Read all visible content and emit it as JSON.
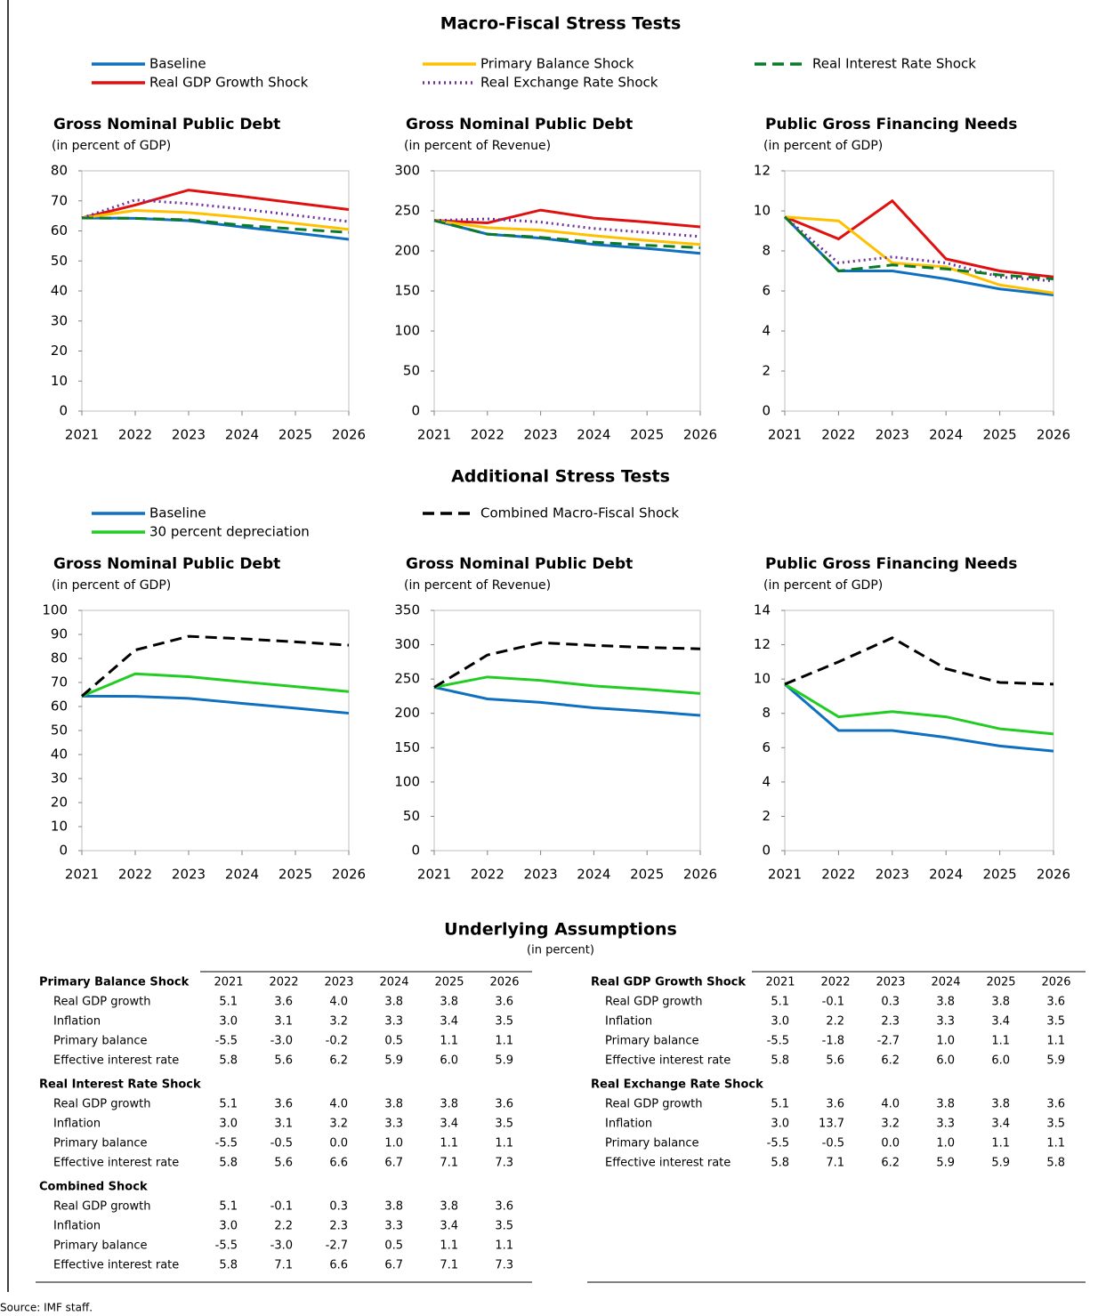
{
  "section_titles": [
    "Macro-Fiscal Stress Tests",
    "Additional Stress Tests"
  ],
  "chart_data": [
    {
      "type": "line",
      "title": "Gross Nominal Public Debt",
      "subtitle": "(in percent of GDP)",
      "categories": [
        "2021",
        "2022",
        "2023",
        "2024",
        "2025",
        "2026"
      ],
      "series": [
        {
          "name": "Baseline",
          "color": "#1070c0",
          "style": "solid",
          "values": [
            64.3,
            64.2,
            63.4,
            61.3,
            59.3,
            57.2
          ]
        },
        {
          "name": "Real GDP Growth Shock",
          "color": "#e01010",
          "style": "solid",
          "values": [
            64.3,
            68.6,
            73.6,
            71.5,
            69.3,
            67.1
          ]
        },
        {
          "name": "Primary Balance Shock",
          "color": "#ffc000",
          "style": "solid",
          "values": [
            64.3,
            66.8,
            66.1,
            64.5,
            62.5,
            60.5
          ]
        },
        {
          "name": "Real Exchange Rate Shock",
          "color": "#7030a0",
          "style": "dotted",
          "values": [
            64.3,
            70.3,
            69.1,
            67.3,
            65.2,
            63.1
          ]
        },
        {
          "name": "Real Interest Rate Shock",
          "color": "#0a7a2a",
          "style": "dashed",
          "values": [
            64.3,
            64.2,
            63.7,
            61.9,
            60.6,
            59.5
          ]
        }
      ],
      "ylim": [
        0,
        80
      ],
      "yticks": [
        0,
        10,
        20,
        30,
        40,
        50,
        60,
        70,
        80
      ]
    },
    {
      "type": "line",
      "title": "Gross Nominal Public Debt",
      "subtitle": "(in percent of Revenue)",
      "categories": [
        "2021",
        "2022",
        "2023",
        "2024",
        "2025",
        "2026"
      ],
      "series": [
        {
          "name": "Baseline",
          "color": "#1070c0",
          "style": "solid",
          "values": [
            238,
            221,
            216,
            208,
            203,
            197
          ]
        },
        {
          "name": "Real GDP Growth Shock",
          "color": "#e01010",
          "style": "solid",
          "values": [
            238,
            235,
            251,
            241,
            236,
            230
          ]
        },
        {
          "name": "Primary Balance Shock",
          "color": "#ffc000",
          "style": "solid",
          "values": [
            238,
            229,
            226,
            219,
            213,
            208
          ]
        },
        {
          "name": "Real Exchange Rate Shock",
          "color": "#7030a0",
          "style": "dotted",
          "values": [
            238,
            240,
            236,
            228,
            223,
            218
          ]
        },
        {
          "name": "Real Interest Rate Shock",
          "color": "#0a7a2a",
          "style": "dashed",
          "values": [
            238,
            221,
            217,
            211,
            207,
            204
          ]
        }
      ],
      "ylim": [
        0,
        300
      ],
      "yticks": [
        0,
        50,
        100,
        150,
        200,
        250,
        300
      ]
    },
    {
      "type": "line",
      "title": "Public Gross Financing Needs",
      "subtitle": "(in percent of GDP)",
      "categories": [
        "2021",
        "2022",
        "2023",
        "2024",
        "2025",
        "2026"
      ],
      "series": [
        {
          "name": "Baseline",
          "color": "#1070c0",
          "style": "solid",
          "values": [
            9.7,
            7.0,
            7.0,
            6.6,
            6.1,
            5.8
          ]
        },
        {
          "name": "Real GDP Growth Shock",
          "color": "#e01010",
          "style": "solid",
          "values": [
            9.7,
            8.6,
            10.5,
            7.6,
            7.0,
            6.7
          ]
        },
        {
          "name": "Primary Balance Shock",
          "color": "#ffc000",
          "style": "solid",
          "values": [
            9.7,
            9.5,
            7.4,
            7.2,
            6.3,
            5.9
          ]
        },
        {
          "name": "Real Exchange Rate Shock",
          "color": "#7030a0",
          "style": "dotted",
          "values": [
            9.7,
            7.4,
            7.7,
            7.4,
            6.7,
            6.5
          ]
        },
        {
          "name": "Real Interest Rate Shock",
          "color": "#0a7a2a",
          "style": "dashed",
          "values": [
            9.7,
            7.0,
            7.3,
            7.1,
            6.8,
            6.6
          ]
        }
      ],
      "ylim": [
        0,
        12
      ],
      "yticks": [
        0,
        2,
        4,
        6,
        8,
        10,
        12
      ]
    },
    {
      "type": "line",
      "title": "Gross Nominal Public Debt",
      "subtitle": "(in percent of GDP)",
      "categories": [
        "2021",
        "2022",
        "2023",
        "2024",
        "2025",
        "2026"
      ],
      "series": [
        {
          "name": "Baseline",
          "color": "#1070c0",
          "style": "solid",
          "values": [
            64.3,
            64.2,
            63.4,
            61.3,
            59.3,
            57.2
          ]
        },
        {
          "name": "30 percent depreciation",
          "color": "#22cc22",
          "style": "solid",
          "values": [
            64.3,
            73.6,
            72.4,
            70.3,
            68.3,
            66.2
          ]
        },
        {
          "name": "Combined Macro-Fiscal Shock",
          "color": "#000000",
          "style": "dashed",
          "values": [
            64.3,
            83.5,
            89.2,
            88.2,
            86.9,
            85.5
          ]
        }
      ],
      "ylim": [
        0,
        100
      ],
      "yticks": [
        0,
        10,
        20,
        30,
        40,
        50,
        60,
        70,
        80,
        90,
        100
      ]
    },
    {
      "type": "line",
      "title": "Gross Nominal Public Debt",
      "subtitle": "(in percent of Revenue)",
      "categories": [
        "2021",
        "2022",
        "2023",
        "2024",
        "2025",
        "2026"
      ],
      "series": [
        {
          "name": "Baseline",
          "color": "#1070c0",
          "style": "solid",
          "values": [
            238,
            221,
            216,
            208,
            203,
            197
          ]
        },
        {
          "name": "30 percent depreciation",
          "color": "#22cc22",
          "style": "solid",
          "values": [
            238,
            253,
            248,
            240,
            235,
            229
          ]
        },
        {
          "name": "Combined Macro-Fiscal Shock",
          "color": "#000000",
          "style": "dashed",
          "values": [
            238,
            285,
            303,
            299,
            296,
            294
          ]
        }
      ],
      "ylim": [
        0,
        350
      ],
      "yticks": [
        0,
        50,
        100,
        150,
        200,
        250,
        300,
        350
      ]
    },
    {
      "type": "line",
      "title": "Public Gross Financing Needs",
      "subtitle": "(in percent of GDP)",
      "categories": [
        "2021",
        "2022",
        "2023",
        "2024",
        "2025",
        "2026"
      ],
      "series": [
        {
          "name": "Baseline",
          "color": "#1070c0",
          "style": "solid",
          "values": [
            9.7,
            7.0,
            7.0,
            6.6,
            6.1,
            5.8
          ]
        },
        {
          "name": "30 percent depreciation",
          "color": "#22cc22",
          "style": "solid",
          "values": [
            9.7,
            7.8,
            8.1,
            7.8,
            7.1,
            6.8
          ]
        },
        {
          "name": "Combined Macro-Fiscal Shock",
          "color": "#000000",
          "style": "dashed",
          "values": [
            9.7,
            11.0,
            12.4,
            10.6,
            9.8,
            9.7
          ]
        }
      ],
      "ylim": [
        0,
        14
      ],
      "yticks": [
        0,
        2,
        4,
        6,
        8,
        10,
        12,
        14
      ]
    }
  ],
  "assumptions": {
    "title": "Underlying Assumptions",
    "subtitle": "(in percent)",
    "columns": [
      {
        "years": [
          "2021",
          "2022",
          "2023",
          "2024",
          "2025",
          "2026"
        ],
        "tables": [
          {
            "name": "Primary Balance Shock",
            "rows": [
              {
                "label": "Real GDP growth",
                "values": [
                  "5.1",
                  "3.6",
                  "4.0",
                  "3.8",
                  "3.8",
                  "3.6"
                ]
              },
              {
                "label": "Inflation",
                "values": [
                  "3.0",
                  "3.1",
                  "3.2",
                  "3.3",
                  "3.4",
                  "3.5"
                ]
              },
              {
                "label": "Primary balance",
                "values": [
                  "-5.5",
                  "-3.0",
                  "-0.2",
                  "0.5",
                  "1.1",
                  "1.1"
                ]
              },
              {
                "label": "Effective interest rate",
                "values": [
                  "5.8",
                  "5.6",
                  "6.2",
                  "5.9",
                  "6.0",
                  "5.9"
                ]
              }
            ]
          },
          {
            "name": "Real Interest Rate Shock",
            "rows": [
              {
                "label": "Real GDP growth",
                "values": [
                  "5.1",
                  "3.6",
                  "4.0",
                  "3.8",
                  "3.8",
                  "3.6"
                ]
              },
              {
                "label": "Inflation",
                "values": [
                  "3.0",
                  "3.1",
                  "3.2",
                  "3.3",
                  "3.4",
                  "3.5"
                ]
              },
              {
                "label": "Primary balance",
                "values": [
                  "-5.5",
                  "-0.5",
                  "0.0",
                  "1.0",
                  "1.1",
                  "1.1"
                ]
              },
              {
                "label": "Effective interest rate",
                "values": [
                  "5.8",
                  "5.6",
                  "6.6",
                  "6.7",
                  "7.1",
                  "7.3"
                ]
              }
            ]
          },
          {
            "name": "Combined Shock",
            "rows": [
              {
                "label": "Real GDP growth",
                "values": [
                  "5.1",
                  "-0.1",
                  "0.3",
                  "3.8",
                  "3.8",
                  "3.6"
                ]
              },
              {
                "label": "Inflation",
                "values": [
                  "3.0",
                  "2.2",
                  "2.3",
                  "3.3",
                  "3.4",
                  "3.5"
                ]
              },
              {
                "label": "Primary balance",
                "values": [
                  "-5.5",
                  "-3.0",
                  "-2.7",
                  "0.5",
                  "1.1",
                  "1.1"
                ]
              },
              {
                "label": "Effective interest rate",
                "values": [
                  "5.8",
                  "7.1",
                  "6.6",
                  "6.7",
                  "7.1",
                  "7.3"
                ]
              }
            ]
          }
        ]
      },
      {
        "years": [
          "2021",
          "2022",
          "2023",
          "2024",
          "2025",
          "2026"
        ],
        "tables": [
          {
            "name": "Real GDP Growth Shock",
            "rows": [
              {
                "label": "Real GDP growth",
                "values": [
                  "5.1",
                  "-0.1",
                  "0.3",
                  "3.8",
                  "3.8",
                  "3.6"
                ]
              },
              {
                "label": "Inflation",
                "values": [
                  "3.0",
                  "2.2",
                  "2.3",
                  "3.3",
                  "3.4",
                  "3.5"
                ]
              },
              {
                "label": "Primary balance",
                "values": [
                  "-5.5",
                  "-1.8",
                  "-2.7",
                  "1.0",
                  "1.1",
                  "1.1"
                ]
              },
              {
                "label": "Effective interest rate",
                "values": [
                  "5.8",
                  "5.6",
                  "6.2",
                  "6.0",
                  "6.0",
                  "5.9"
                ]
              }
            ]
          },
          {
            "name": "Real Exchange Rate Shock",
            "rows": [
              {
                "label": "Real GDP growth",
                "values": [
                  "5.1",
                  "3.6",
                  "4.0",
                  "3.8",
                  "3.8",
                  "3.6"
                ]
              },
              {
                "label": "Inflation",
                "values": [
                  "3.0",
                  "13.7",
                  "3.2",
                  "3.3",
                  "3.4",
                  "3.5"
                ]
              },
              {
                "label": "Primary balance",
                "values": [
                  "-5.5",
                  "-0.5",
                  "0.0",
                  "1.0",
                  "1.1",
                  "1.1"
                ]
              },
              {
                "label": "Effective interest rate",
                "values": [
                  "5.8",
                  "7.1",
                  "6.2",
                  "5.9",
                  "5.9",
                  "5.8"
                ]
              }
            ]
          }
        ]
      }
    ]
  },
  "source": "Source: IMF staff."
}
